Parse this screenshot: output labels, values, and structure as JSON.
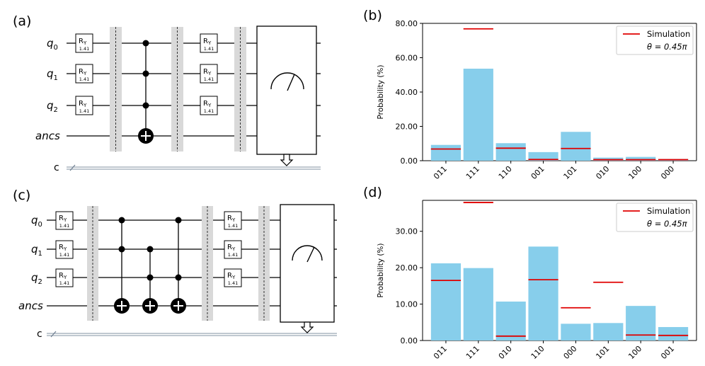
{
  "panels": {
    "a": "(a)",
    "b": "(b)",
    "c": "(c)",
    "d": "(d)"
  },
  "circuit_a": {
    "qubits": [
      {
        "name": "q",
        "sub": "0"
      },
      {
        "name": "q",
        "sub": "1"
      },
      {
        "name": "q",
        "sub": "2"
      },
      {
        "name": "ancs",
        "sub": ""
      }
    ],
    "classical_label": "c",
    "gate_name": "R",
    "gate_sub": "Y",
    "gate_param": "1.41"
  },
  "circuit_c": {
    "qubits": [
      {
        "name": "q",
        "sub": "0"
      },
      {
        "name": "q",
        "sub": "1"
      },
      {
        "name": "q",
        "sub": "2"
      },
      {
        "name": "ancs",
        "sub": ""
      }
    ],
    "classical_label": "c",
    "gate_name": "R",
    "gate_sub": "Y",
    "gate_param": "1.41"
  },
  "chart_data": [
    {
      "type": "bar",
      "panel": "(b)",
      "categories": [
        "011",
        "111",
        "110",
        "001",
        "101",
        "010",
        "100",
        "000"
      ],
      "values": [
        9.2,
        53.6,
        10.2,
        5.0,
        16.8,
        1.8,
        2.2,
        1.0
      ],
      "simulation": [
        6.8,
        76.8,
        7.3,
        0.7,
        7.1,
        0.6,
        0.6,
        0.6
      ],
      "ylabel": "Probability (%)",
      "ylim": [
        0,
        80
      ],
      "yticks": [
        "0.00",
        "20.00",
        "40.00",
        "60.00",
        "80.00"
      ],
      "ytick_values": [
        0,
        20,
        40,
        60,
        80
      ],
      "legend": {
        "series": "Simulation",
        "theta": "θ = 0.45π",
        "position": "top-right"
      }
    },
    {
      "type": "bar",
      "panel": "(d)",
      "categories": [
        "011",
        "111",
        "010",
        "110",
        "000",
        "101",
        "100",
        "001"
      ],
      "values": [
        21.2,
        19.9,
        10.7,
        25.8,
        4.6,
        4.8,
        9.5,
        3.7
      ],
      "simulation": [
        16.5,
        37.9,
        1.2,
        16.7,
        9.0,
        16.0,
        1.5,
        1.4
      ],
      "ylabel": "Probability (%)",
      "ylim": [
        0,
        38.5
      ],
      "yticks": [
        "0.00",
        "10.00",
        "20.00",
        "30.00"
      ],
      "ytick_values": [
        0,
        10,
        20,
        30
      ],
      "legend": {
        "series": "Simulation",
        "theta": "θ = 0.45π",
        "position": "top-right"
      }
    }
  ]
}
